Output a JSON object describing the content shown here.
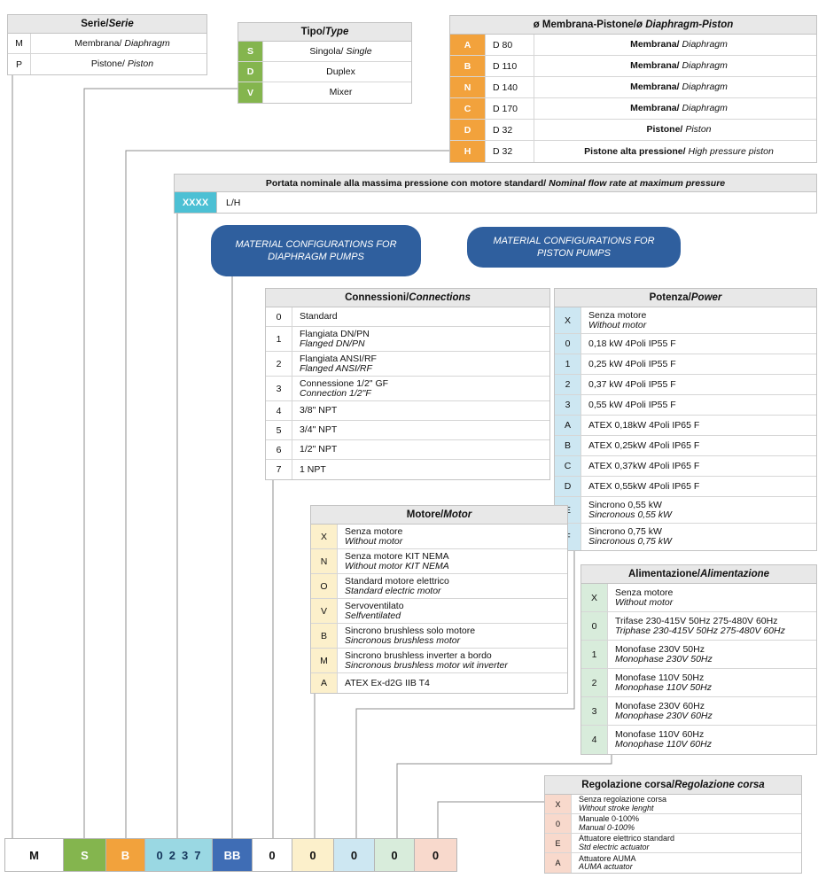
{
  "colors": {
    "green": "#84b54e",
    "orange": "#f2a23c",
    "teal": "#4cc0d4",
    "teal_light": "#9ad8e3",
    "blue_dark": "#2f5f9e",
    "blue_code": "#3f6db5",
    "light_blue": "#cde7f2",
    "cream": "#fcf0cb",
    "light_green": "#d8ecdb",
    "pink": "#f8d9cc",
    "header_gray": "#e8e8e8"
  },
  "tables": {
    "serie": {
      "title_it": "Serie/",
      "title_en": "Serie",
      "code_bg": "#ffffff",
      "code_text": "#111111",
      "code_bold": false,
      "inline_en": true,
      "rows": [
        {
          "code": "M",
          "it": "Membrana/",
          "en": "Diaphragm"
        },
        {
          "code": "P",
          "it": "Pistone/",
          "en": "Piston"
        }
      ]
    },
    "tipo": {
      "title_it": "Tipo/",
      "title_en": "Type",
      "code_bg": "#84b54e",
      "code_text": "#ffffff",
      "code_bold": true,
      "inline_en": true,
      "rows": [
        {
          "code": "S",
          "it": "Singola/",
          "en": "Single"
        },
        {
          "code": "D",
          "it": "Duplex",
          "en": ""
        },
        {
          "code": "V",
          "it": "Mixer",
          "en": ""
        }
      ]
    },
    "membrana": {
      "title_it": "ø Membrana-Pistone/",
      "title_en": "ø Diaphragm-Piston",
      "code_bg": "#f2a23c",
      "code_text": "#ffffff",
      "code_bold": true,
      "inline_en": true,
      "rows": [
        {
          "code": "A",
          "size": "D 80",
          "it": "Membrana/",
          "en": "Diaphragm"
        },
        {
          "code": "B",
          "size": "D 110",
          "it": "Membrana/",
          "en": "Diaphragm"
        },
        {
          "code": "N",
          "size": "D 140",
          "it": "Membrana/",
          "en": "Diaphragm"
        },
        {
          "code": "C",
          "size": "D 170",
          "it": "Membrana/",
          "en": "Diaphragm"
        },
        {
          "code": "D",
          "size": "D 32",
          "it": "Pistone/",
          "en": "Piston"
        },
        {
          "code": "H",
          "size": "D 32",
          "it": "Pistone alta pressione/",
          "en": "High pressure piston"
        }
      ]
    },
    "connessioni": {
      "title_it": "Connessioni/",
      "title_en": "Connections",
      "code_bg": "#ffffff",
      "code_text": "#111111",
      "code_bold": false,
      "inline_en": false,
      "rows": [
        {
          "code": "0",
          "it": "Standard",
          "en": ""
        },
        {
          "code": "1",
          "it": "Flangiata DN/PN",
          "en": "Flanged DN/PN"
        },
        {
          "code": "2",
          "it": "Flangiata ANSI/RF",
          "en": "Flanged ANSI/RF"
        },
        {
          "code": "3",
          "it": "Connessione 1/2\" GF",
          "en": "Connection 1/2\"F"
        },
        {
          "code": "4",
          "it": "3/8\" NPT",
          "en": ""
        },
        {
          "code": "5",
          "it": "3/4\" NPT",
          "en": ""
        },
        {
          "code": "6",
          "it": "1/2\" NPT",
          "en": ""
        },
        {
          "code": "7",
          "it": "1 NPT",
          "en": ""
        }
      ]
    },
    "potenza": {
      "title_it": "Potenza/",
      "title_en": "Power",
      "code_bg": "#cde7f2",
      "code_text": "#111111",
      "code_bold": false,
      "inline_en": false,
      "rows": [
        {
          "code": "X",
          "it": "Senza motore",
          "en": "Without motor"
        },
        {
          "code": "0",
          "it": "0,18 kW 4Poli IP55 F",
          "en": ""
        },
        {
          "code": "1",
          "it": "0,25 kW 4Poli IP55 F",
          "en": ""
        },
        {
          "code": "2",
          "it": "0,37 kW 4Poli IP55 F",
          "en": ""
        },
        {
          "code": "3",
          "it": "0,55 kW 4Poli IP55 F",
          "en": ""
        },
        {
          "code": "A",
          "it": "ATEX 0,18kW 4Poli IP65 F",
          "en": ""
        },
        {
          "code": "B",
          "it": "ATEX 0,25kW 4Poli IP65 F",
          "en": ""
        },
        {
          "code": "C",
          "it": "ATEX 0,37kW 4Poli IP65 F",
          "en": ""
        },
        {
          "code": "D",
          "it": "ATEX 0,55kW 4Poli IP65 F",
          "en": ""
        },
        {
          "code": "E",
          "it": "Sincrono 0,55 kW",
          "en": "Sincronous 0,55 kW"
        },
        {
          "code": "F",
          "it": "Sincrono 0,75 kW",
          "en": "Sincronous 0,75 kW"
        }
      ]
    },
    "motore": {
      "title_it": "Motore/",
      "title_en": "Motor",
      "code_bg": "#fcf0cb",
      "code_text": "#111111",
      "code_bold": false,
      "inline_en": false,
      "rows": [
        {
          "code": "X",
          "it": "Senza motore",
          "en": "Without motor"
        },
        {
          "code": "N",
          "it": "Senza motore KIT NEMA",
          "en": "Without motor KIT NEMA"
        },
        {
          "code": "O",
          "it": "Standard motore elettrico",
          "en": "Standard electric motor"
        },
        {
          "code": "V",
          "it": "Servoventilato",
          "en": "Selfventilated"
        },
        {
          "code": "B",
          "it": "Sincrono brushless solo motore",
          "en": "Sincronous brushless motor"
        },
        {
          "code": "M",
          "it": "Sincrono brushless inverter a bordo",
          "en": "Sincronous brushless motor wit inverter"
        },
        {
          "code": "A",
          "it": "ATEX Ex-d2G IIB T4",
          "en": ""
        }
      ]
    },
    "alimentazione": {
      "title_it": "Alimentazione/",
      "title_en": "Alimentazione",
      "code_bg": "#d8ecdb",
      "code_text": "#111111",
      "code_bold": false,
      "inline_en": false,
      "rows": [
        {
          "code": "X",
          "it": "Senza motore",
          "en": "Without motor"
        },
        {
          "code": "0",
          "it": "Trifase 230-415V 50Hz 275-480V 60Hz",
          "en": "Triphase 230-415V 50Hz 275-480V 60Hz"
        },
        {
          "code": "1",
          "it": "Monofase 230V 50Hz",
          "en": "Monophase 230V 50Hz"
        },
        {
          "code": "2",
          "it": "Monofase 110V 50Hz",
          "en": "Monophase 110V 50Hz"
        },
        {
          "code": "3",
          "it": "Monofase 230V 60Hz",
          "en": "Monophase 230V 60Hz"
        },
        {
          "code": "4",
          "it": "Monofase 110V 60Hz",
          "en": "Monophase 110V 60Hz"
        }
      ]
    },
    "regolazione": {
      "title_it": "Regolazione corsa/",
      "title_en": "Regolazione corsa",
      "code_bg": "#f8d9cc",
      "code_text": "#111111",
      "code_bold": false,
      "inline_en": false,
      "rows": [
        {
          "code": "X",
          "it": "Senza regolazione corsa",
          "en": "Without stroke lenght"
        },
        {
          "code": "0",
          "it": "Manuale 0-100%",
          "en": "Manual 0-100%"
        },
        {
          "code": "E",
          "it": "Attuatore elettrico standard",
          "en": "Std electric actuator"
        },
        {
          "code": "A",
          "it": "Attuatore AUMA",
          "en": "AUMA actuator"
        }
      ]
    }
  },
  "portata": {
    "title_it": "Portata nominale alla massima pressione con motore standard/",
    "title_en": "Nominal flow rate at maximum pressure",
    "code": "XXXX",
    "unit": "L/H"
  },
  "callouts": {
    "diaphragm": "MATERIAL CONFIGURATIONS FOR DIAPHRAGM PUMPS",
    "piston": "MATERIAL CONFIGURATIONS FOR PISTON PUMPS"
  },
  "example_code": [
    {
      "text": "M",
      "bg": "#ffffff",
      "fg": "#111111"
    },
    {
      "text": "S",
      "bg": "#84b54e",
      "fg": "#ffffff"
    },
    {
      "text": "B",
      "bg": "#f2a23c",
      "fg": "#ffffff"
    },
    {
      "text": "0237",
      "bg": "#9ad8e3",
      "fg": "#15365c"
    },
    {
      "text": "BB",
      "bg": "#3f6db5",
      "fg": "#ffffff"
    },
    {
      "text": "0",
      "bg": "#ffffff",
      "fg": "#111111"
    },
    {
      "text": "0",
      "bg": "#fcf0cb",
      "fg": "#111111"
    },
    {
      "text": "0",
      "bg": "#cde7f2",
      "fg": "#111111"
    },
    {
      "text": "0",
      "bg": "#d8ecdb",
      "fg": "#111111"
    },
    {
      "text": "0",
      "bg": "#f8d9cc",
      "fg": "#111111"
    }
  ]
}
